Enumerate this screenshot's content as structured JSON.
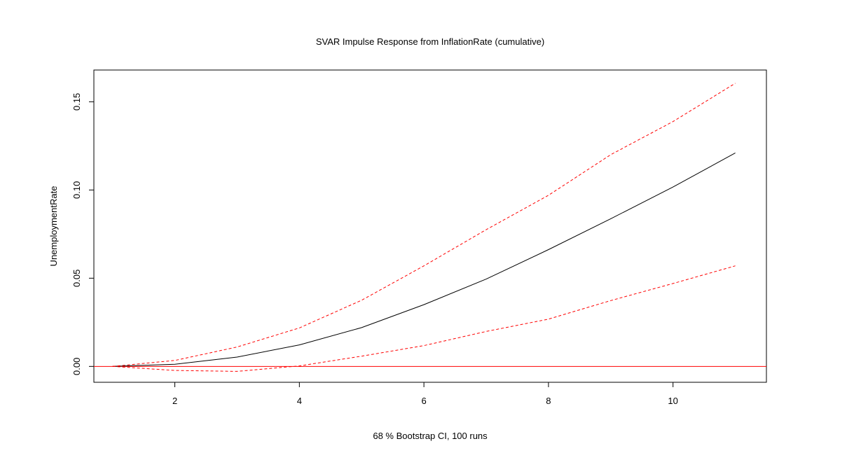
{
  "chart_data": {
    "type": "line",
    "title": "SVAR Impulse Response from InflationRate (cumulative)",
    "xlabel": "68 % Bootstrap CI,  100 runs",
    "ylabel": "UnemploymentRate",
    "xlim": [
      0.7,
      11.5
    ],
    "ylim": [
      -0.009,
      0.168
    ],
    "x_ticks": [
      2,
      4,
      6,
      8,
      10
    ],
    "y_ticks": [
      0.0,
      0.05,
      0.1,
      0.15
    ],
    "y_tick_labels": [
      "0.00",
      "0.05",
      "0.10",
      "0.15"
    ],
    "grid": false,
    "legend": "none",
    "x": [
      1,
      2,
      3,
      4,
      5,
      6,
      7,
      8,
      9,
      10,
      11
    ],
    "series": [
      {
        "role": "response",
        "color": "#000000",
        "style": "solid",
        "values": [
          0.0,
          0.0012,
          0.0053,
          0.0122,
          0.022,
          0.035,
          0.0495,
          0.0662,
          0.0837,
          0.1017,
          0.121
        ]
      },
      {
        "role": "upper",
        "color": "#ff0000",
        "style": "dashed",
        "values": [
          0.0,
          0.0034,
          0.011,
          0.0218,
          0.0375,
          0.057,
          0.0775,
          0.097,
          0.12,
          0.1388,
          0.1605
        ]
      },
      {
        "role": "lower",
        "color": "#ff0000",
        "style": "dashed",
        "values": [
          0.0,
          -0.0023,
          -0.0028,
          0.0003,
          0.0058,
          0.0118,
          0.0198,
          0.0268,
          0.0373,
          0.047,
          0.057
        ]
      }
    ],
    "reference_line": {
      "y": 0.0,
      "color": "#ff0000"
    }
  }
}
